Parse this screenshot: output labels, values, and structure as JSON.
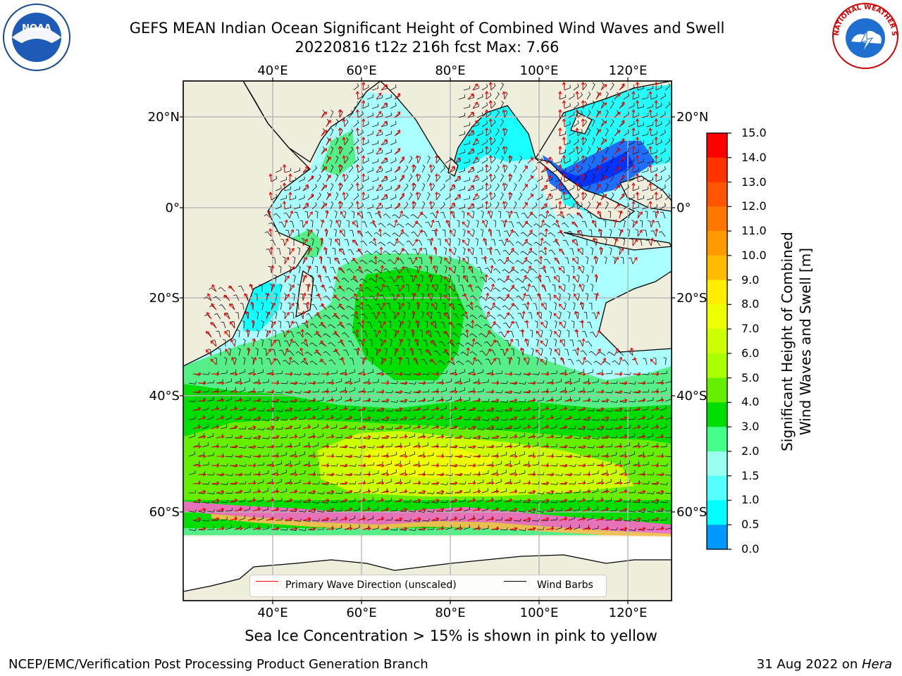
{
  "header": {
    "title_line1": "GEFS MEAN Indian Ocean Significant Height of Combined Wind Waves and Swell",
    "title_line2": "20220816 t12z 216h fcst   Max: 7.66"
  },
  "axes": {
    "lon_labels": [
      "40°E",
      "60°E",
      "80°E",
      "100°E",
      "120°E"
    ],
    "lat_labels": [
      "20°N",
      "0°",
      "20°S",
      "40°S",
      "60°S"
    ]
  },
  "colorbar": {
    "title_line1": "Significant Height of Combined",
    "title_line2": "Wind Waves and Swell [m]",
    "ticks": [
      "15.0",
      "14.0",
      "13.0",
      "12.0",
      "11.0",
      "10.0",
      "9.0",
      "8.0",
      "7.0",
      "6.0",
      "5.0",
      "4.0",
      "3.0",
      "2.0",
      "1.5",
      "1.0",
      "0.5",
      "0.0"
    ],
    "colors": [
      "#ff0000",
      "#ff3300",
      "#ff5500",
      "#ff7700",
      "#ff9900",
      "#ffbb00",
      "#ffee00",
      "#eeff00",
      "#ccff00",
      "#aaff00",
      "#66ee00",
      "#00dd00",
      "#44ff88",
      "#99ffee",
      "#55ffff",
      "#00ffff",
      "#0099ff",
      "#0066ff",
      "#0000ff"
    ]
  },
  "legend": {
    "wave_direction": "Primary Wave Direction (unscaled)",
    "wind_barbs": "Wind Barbs",
    "wave_color": "#ff0000",
    "barb_color": "#000000"
  },
  "colors": {
    "land": "#efeddc",
    "ocean_calm": "#aaffff",
    "ocean_mid": "#55ee88",
    "ocean_high": "#00dd00",
    "ocean_peak": "#ccff00",
    "sea_ice": "#ff66cc"
  },
  "footer": {
    "caption": "Sea Ice Concentration > 15% is shown in pink to yellow",
    "credit": "NCEP/EMC/Verification Post Processing Product Generation Branch",
    "date": "31 Aug 2022 on ",
    "machine": "Hera"
  },
  "logos": {
    "noaa_text": "NOAA",
    "nws_text": "NATIONAL WEATHER SERVICE"
  }
}
